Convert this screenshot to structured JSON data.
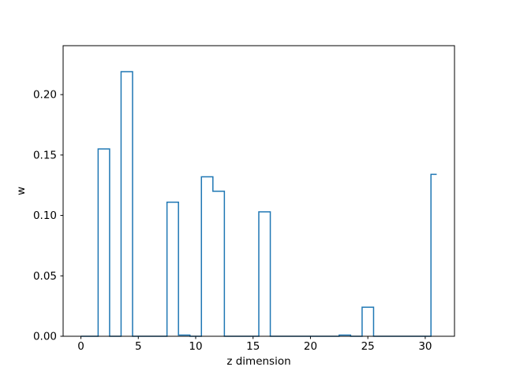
{
  "chart_data": {
    "type": "step",
    "title": "",
    "xlabel": "z dimension",
    "ylabel": "w",
    "step_where": "mid",
    "line_color": "#1f77b4",
    "background_color": "#ffffff",
    "spine_color": "#000000",
    "grid": false,
    "legend": false,
    "xlim": [
      -1.55,
      32.55
    ],
    "ylim": [
      0,
      0.2405
    ],
    "xticks": [
      0,
      5,
      10,
      15,
      20,
      25,
      30
    ],
    "xtick_labels": [
      "0",
      "5",
      "10",
      "15",
      "20",
      "25",
      "30"
    ],
    "yticks": [
      0,
      0.05,
      0.1,
      0.15,
      0.2
    ],
    "ytick_labels": [
      "0.00",
      "0.05",
      "0.10",
      "0.15",
      "0.20"
    ],
    "x": [
      0,
      1,
      2,
      3,
      4,
      5,
      6,
      7,
      8,
      9,
      10,
      11,
      12,
      13,
      14,
      15,
      16,
      17,
      18,
      19,
      20,
      21,
      22,
      23,
      24,
      25,
      26,
      27,
      28,
      29,
      30,
      31
    ],
    "values": [
      0,
      0,
      0.155,
      0,
      0.219,
      0,
      0,
      0,
      0.111,
      0.001,
      0,
      0.132,
      0.12,
      0,
      0,
      0,
      0.103,
      0,
      0,
      0,
      0,
      0,
      0,
      0.001,
      0,
      0.024,
      0,
      0,
      0,
      0,
      0,
      0.134
    ]
  }
}
